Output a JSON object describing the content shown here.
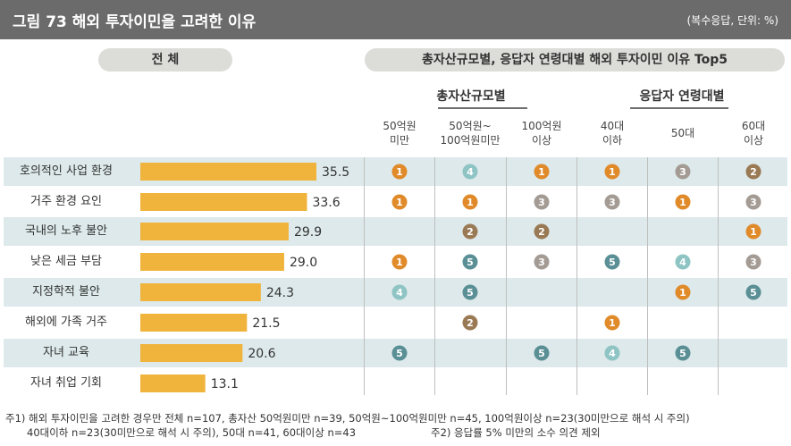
{
  "header": {
    "title": "그림 73  해외 투자이민을 고려한 이유",
    "unit": "(복수응답, 단위: %)"
  },
  "sections": {
    "overall": "전  체",
    "breakdown": "총자산규모별, 응답자 연령대별 해외 투자이민 이유 Top5"
  },
  "groups": {
    "assets": "총자산규모별",
    "age": "응답자 연령대별"
  },
  "columns": [
    {
      "line1": "50억원",
      "line2": "미만"
    },
    {
      "line1": "50억원~",
      "line2": "100억원미만"
    },
    {
      "line1": "100억원",
      "line2": "이상"
    },
    {
      "line1": "40대",
      "line2": "이하"
    },
    {
      "line1": "50대",
      "line2": ""
    },
    {
      "line1": "60대",
      "line2": "이상"
    }
  ],
  "colors": {
    "bar": "#f0b43c",
    "row_highlight": "#dde9ea",
    "rank1": "#e08a2a",
    "rank2": "#9a7a55",
    "rank3": "#a39b94",
    "rank4": "#8fc4c4",
    "rank5": "#5a8f95"
  },
  "chart_data": {
    "type": "bar",
    "orientation": "horizontal",
    "categories": [
      "호의적인 사업 환경",
      "거주 환경 요인",
      "국내의 노후 불안",
      "낮은 세금 부담",
      "지정학적 불안",
      "해외에 가족 거주",
      "자녀 교육",
      "자녀 취업 기회"
    ],
    "values": [
      35.5,
      33.6,
      29.9,
      29.0,
      24.3,
      21.5,
      20.6,
      13.1
    ],
    "ranks": [
      [
        1,
        4,
        1,
        1,
        3,
        2
      ],
      [
        1,
        1,
        3,
        3,
        1,
        3
      ],
      [
        null,
        2,
        2,
        null,
        null,
        1
      ],
      [
        1,
        5,
        3,
        5,
        4,
        3
      ],
      [
        4,
        5,
        null,
        null,
        1,
        5
      ],
      [
        null,
        2,
        null,
        1,
        null,
        null
      ],
      [
        5,
        null,
        5,
        4,
        5,
        null
      ],
      [
        null,
        null,
        null,
        null,
        null,
        null
      ]
    ]
  },
  "footnotes": {
    "line1": "주1) 해외 투자이민을 고려한 경우만 전체 n=107, 총자산 50억원미만 n=39, 50억원~100억원미만 n=45, 100억원이상 n=23(30미만으로 해석 시 주의)",
    "line2a": "40대이하 n=23(30미만으로 해석 시 주의), 50대 n=41, 60대이상 n=43",
    "line2b": "주2) 응답률 5% 미만의 소수 의견 제외"
  }
}
